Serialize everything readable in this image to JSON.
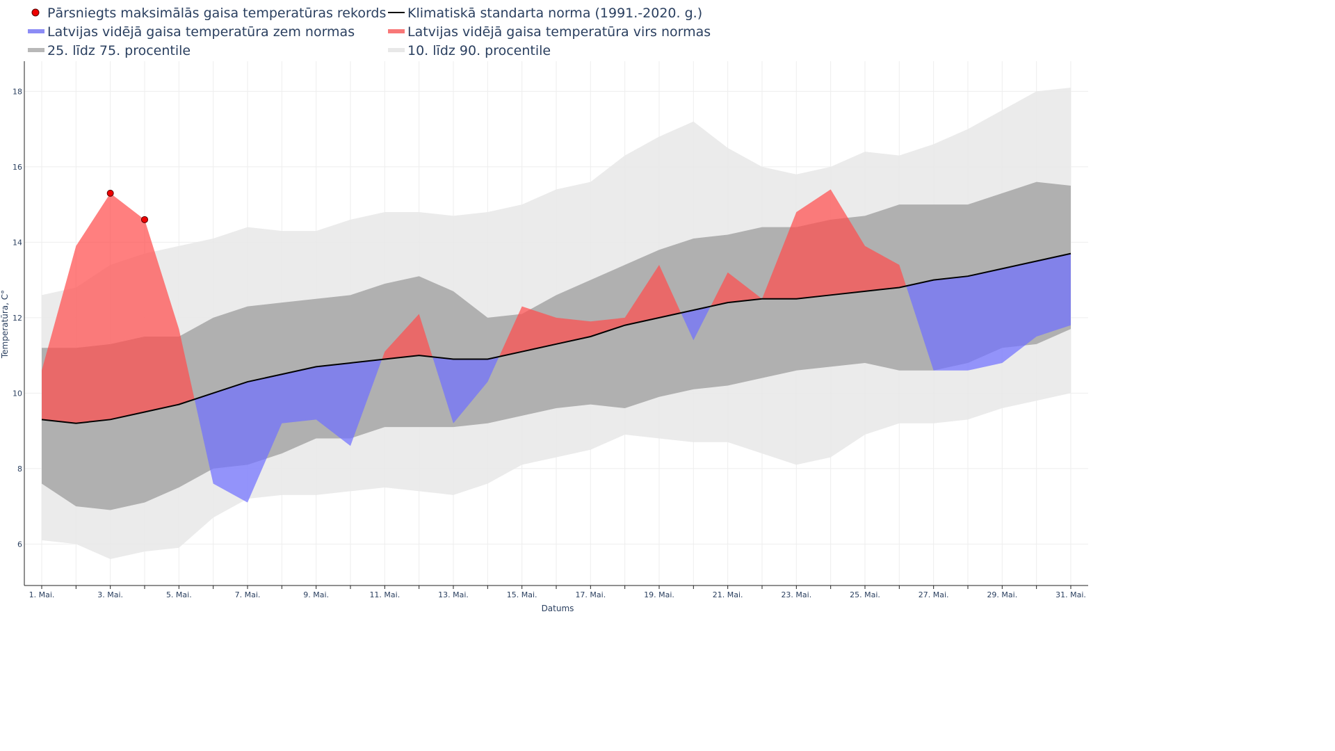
{
  "chart_data": {
    "type": "area",
    "title": "",
    "xlabel": "Datums",
    "ylabel": "Temperatūra, C°",
    "ylim": [
      4.9,
      18.8
    ],
    "yticks": [
      6,
      8,
      10,
      12,
      14,
      16,
      18
    ],
    "grid": true,
    "legend_position": "top",
    "x": [
      "1. Mai.",
      "2. Mai.",
      "3. Mai.",
      "4. Mai.",
      "5. Mai.",
      "6. Mai.",
      "7. Mai.",
      "8. Mai.",
      "9. Mai.",
      "10. Mai.",
      "11. Mai.",
      "12. Mai.",
      "13. Mai.",
      "14. Mai.",
      "15. Mai.",
      "16. Mai.",
      "17. Mai.",
      "18. Mai.",
      "19. Mai.",
      "20. Mai.",
      "21. Mai.",
      "22. Mai.",
      "23. Mai.",
      "24. Mai.",
      "25. Mai.",
      "26. Mai.",
      "27. Mai.",
      "28. Mai.",
      "29. Mai.",
      "30. Mai.",
      "31. Mai."
    ],
    "xtick_labels": [
      "1. Mai.",
      "",
      "3. Mai.",
      "",
      "5. Mai.",
      "",
      "7. Mai.",
      "",
      "9. Mai.",
      "",
      "11. Mai.",
      "",
      "13. Mai.",
      "",
      "15. Mai.",
      "",
      "17. Mai.",
      "",
      "19. Mai.",
      "",
      "21. Mai.",
      "",
      "23. Mai.",
      "",
      "25. Mai.",
      "",
      "27. Mai.",
      "",
      "29. Mai.",
      "",
      "31. Mai."
    ],
    "legend": [
      {
        "label": "Pārsniegts maksimālās gaisa temperatūras rekords",
        "symbol": "dot",
        "color": "#ee0000"
      },
      {
        "label": "Klimatiskā standarta norma (1991.-2020. g.)",
        "symbol": "line",
        "color": "#000000"
      },
      {
        "label": "Latvijas vidējā gaisa temperatūra zem normas",
        "symbol": "bar",
        "color": "#8c8cf5"
      },
      {
        "label": "Latvijas vidējā gaisa temperatūra virs normas",
        "symbol": "bar",
        "color": "#f87878"
      },
      {
        "label": "25. līdz 75. procentile",
        "symbol": "bar",
        "color": "#b8b8b8"
      },
      {
        "label": "10. līdz 90. procentile",
        "symbol": "bar",
        "color": "#e8e8e8"
      }
    ],
    "series": [
      {
        "name": "Klimatiskā standarta norma (1991.-2020. g.)",
        "values": [
          9.3,
          9.2,
          9.3,
          9.5,
          9.7,
          10.0,
          10.3,
          10.5,
          10.7,
          10.8,
          10.9,
          11.0,
          10.9,
          10.9,
          11.1,
          11.3,
          11.5,
          11.8,
          12.0,
          12.2,
          12.4,
          12.5,
          12.5,
          12.6,
          12.7,
          12.8,
          13.0,
          13.1,
          13.3,
          13.5,
          13.7
        ]
      },
      {
        "name": "Latvijas vidējā gaisa temperatūra",
        "values": [
          10.6,
          13.9,
          15.3,
          14.6,
          11.7,
          7.6,
          7.1,
          9.2,
          9.3,
          8.6,
          11.1,
          12.1,
          9.2,
          10.3,
          12.3,
          12.0,
          11.9,
          12.0,
          13.4,
          11.4,
          13.2,
          12.5,
          14.8,
          15.4,
          13.9,
          13.4,
          10.6,
          10.6,
          10.8,
          11.5,
          11.8
        ]
      },
      {
        "name": "25. līdz 75. procentile (25.)",
        "values": [
          7.6,
          7.0,
          6.9,
          7.1,
          7.5,
          8.0,
          8.1,
          8.4,
          8.8,
          8.8,
          9.1,
          9.1,
          9.1,
          9.2,
          9.4,
          9.6,
          9.7,
          9.6,
          9.9,
          10.1,
          10.2,
          10.4,
          10.6,
          10.7,
          10.8,
          10.6,
          10.6,
          10.8,
          11.2,
          11.3,
          11.7
        ]
      },
      {
        "name": "25. līdz 75. procentile (75.)",
        "values": [
          11.2,
          11.2,
          11.3,
          11.5,
          11.5,
          12.0,
          12.3,
          12.4,
          12.5,
          12.6,
          12.9,
          13.1,
          12.7,
          12.0,
          12.1,
          12.6,
          13.0,
          13.4,
          13.8,
          14.1,
          14.2,
          14.4,
          14.4,
          14.6,
          14.7,
          15.0,
          15.0,
          15.0,
          15.3,
          15.6,
          15.5
        ]
      },
      {
        "name": "10. līdz 90. procentile (10.)",
        "values": [
          6.1,
          6.0,
          5.6,
          5.8,
          5.9,
          6.7,
          7.2,
          7.3,
          7.3,
          7.4,
          7.5,
          7.4,
          7.3,
          7.6,
          8.1,
          8.3,
          8.5,
          8.9,
          8.8,
          8.7,
          8.7,
          8.4,
          8.1,
          8.3,
          8.9,
          9.2,
          9.2,
          9.3,
          9.6,
          9.8,
          10.0
        ]
      },
      {
        "name": "10. līdz 90. procentile (90.)",
        "values": [
          12.6,
          12.8,
          13.4,
          13.7,
          13.9,
          14.1,
          14.4,
          14.3,
          14.3,
          14.6,
          14.8,
          14.8,
          14.7,
          14.8,
          15.0,
          15.4,
          15.6,
          16.3,
          16.8,
          17.2,
          16.5,
          16.0,
          15.8,
          16.0,
          16.4,
          16.3,
          16.6,
          17.0,
          17.5,
          18.0,
          18.1
        ]
      },
      {
        "name": "Pārsniegts maksimālās gaisa temperatūras rekords",
        "points": [
          {
            "x": "3. Mai.",
            "y": 15.3
          },
          {
            "x": "4. Mai.",
            "y": 14.6
          }
        ]
      }
    ]
  },
  "colors": {
    "p10_90": "#e8e8e8",
    "p25_75": "#b0b0b0",
    "above": "#ff4d4d",
    "below": "#7070ff",
    "norm": "#000000",
    "record": "#ee0000",
    "text": "#2a3f5f",
    "grid": "#eeeeee"
  }
}
